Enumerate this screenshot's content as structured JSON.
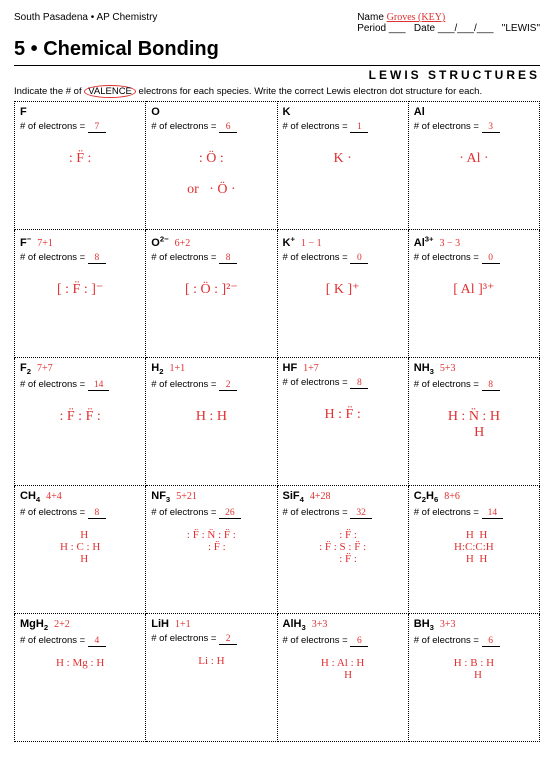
{
  "header": {
    "school": "South Pasadena • AP Chemistry",
    "name_label": "Name",
    "name_value": "Groves (KEY)",
    "period_label": "Period ___",
    "date_label": "Date ___/___/___",
    "topic": "\"LEWIS\"",
    "unit": "5 • Chemical Bonding",
    "subtitle": "LEWIS STRUCTURES",
    "instructions_pre": "Indicate the # of ",
    "instructions_circ": "VALENCE",
    "instructions_post": " electrons for each species.  Write the correct Lewis electron dot structure for each.",
    "elabel": "# of electrons ="
  },
  "cells": [
    [
      {
        "formula": "F",
        "calc": "",
        "electrons": "7",
        "lewis": ": F̈ :"
      },
      {
        "formula": "O",
        "calc": "",
        "electrons": "6",
        "lewis": ": Ö :\n\nor   · Ö ·"
      },
      {
        "formula": "K",
        "calc": "",
        "electrons": "1",
        "lewis": "K ·"
      },
      {
        "formula": "Al",
        "calc": "",
        "electrons": "3",
        "lewis": "· Al ·"
      }
    ],
    [
      {
        "formula": "F<sup>−</sup>",
        "calc": "7+1",
        "electrons": "8",
        "lewis": "[ : F̈ : ]⁻"
      },
      {
        "formula": "O<sup>2−</sup>",
        "calc": "6+2",
        "electrons": "8",
        "lewis": "[ : Ö : ]²⁻"
      },
      {
        "formula": "K<sup>+</sup>",
        "calc": "1 − 1",
        "electrons": "0",
        "lewis": "[ K ]⁺"
      },
      {
        "formula": "Al<sup>3+</sup>",
        "calc": "3 − 3",
        "electrons": "0",
        "lewis": "[ Al ]³⁺"
      }
    ],
    [
      {
        "formula": "F<sub>2</sub>",
        "calc": "7+7",
        "electrons": "14",
        "lewis": ": F̈ : F̈ :"
      },
      {
        "formula": "H<sub>2</sub>",
        "calc": "1+1",
        "electrons": "2",
        "lewis": "H : H"
      },
      {
        "formula": "HF",
        "calc": "1+7",
        "electrons": "8",
        "lewis": "H : F̈ :"
      },
      {
        "formula": "NH<sub>3</sub>",
        "calc": "5+3",
        "electrons": "8",
        "lewis": "H : N̈ : H\n   H"
      }
    ],
    [
      {
        "formula": "CH<sub>4</sub>",
        "calc": "4+4",
        "electrons": "8",
        "lewis": "   H\nH : C : H\n   H"
      },
      {
        "formula": "NF<sub>3</sub>",
        "calc": "5+21",
        "electrons": "26",
        "lewis": ": F̈ : N̈ : F̈ :\n    : F̈ :"
      },
      {
        "formula": "SiF<sub>4</sub>",
        "calc": "4+28",
        "electrons": "32",
        "lewis": "    : F̈ :\n: F̈ : S : F̈ :\n    : F̈ :"
      },
      {
        "formula": "C<sub>2</sub>H<sub>6</sub>",
        "calc": "8+6",
        "electrons": "14",
        "lewis": "  H  H\nH:C:C:H\n  H  H"
      }
    ],
    [
      {
        "formula": "MgH<sub>2</sub>",
        "calc": "2+2",
        "electrons": "4",
        "lewis": "H : Mg : H"
      },
      {
        "formula": "LiH",
        "calc": "1+1",
        "electrons": "2",
        "lewis": "Li : H"
      },
      {
        "formula": "AlH<sub>3</sub>",
        "calc": "3+3",
        "electrons": "6",
        "lewis": "H : Al : H\n    H"
      },
      {
        "formula": "BH<sub>3</sub>",
        "calc": "3+3",
        "electrons": "6",
        "lewis": "H : B : H\n   H"
      }
    ]
  ]
}
